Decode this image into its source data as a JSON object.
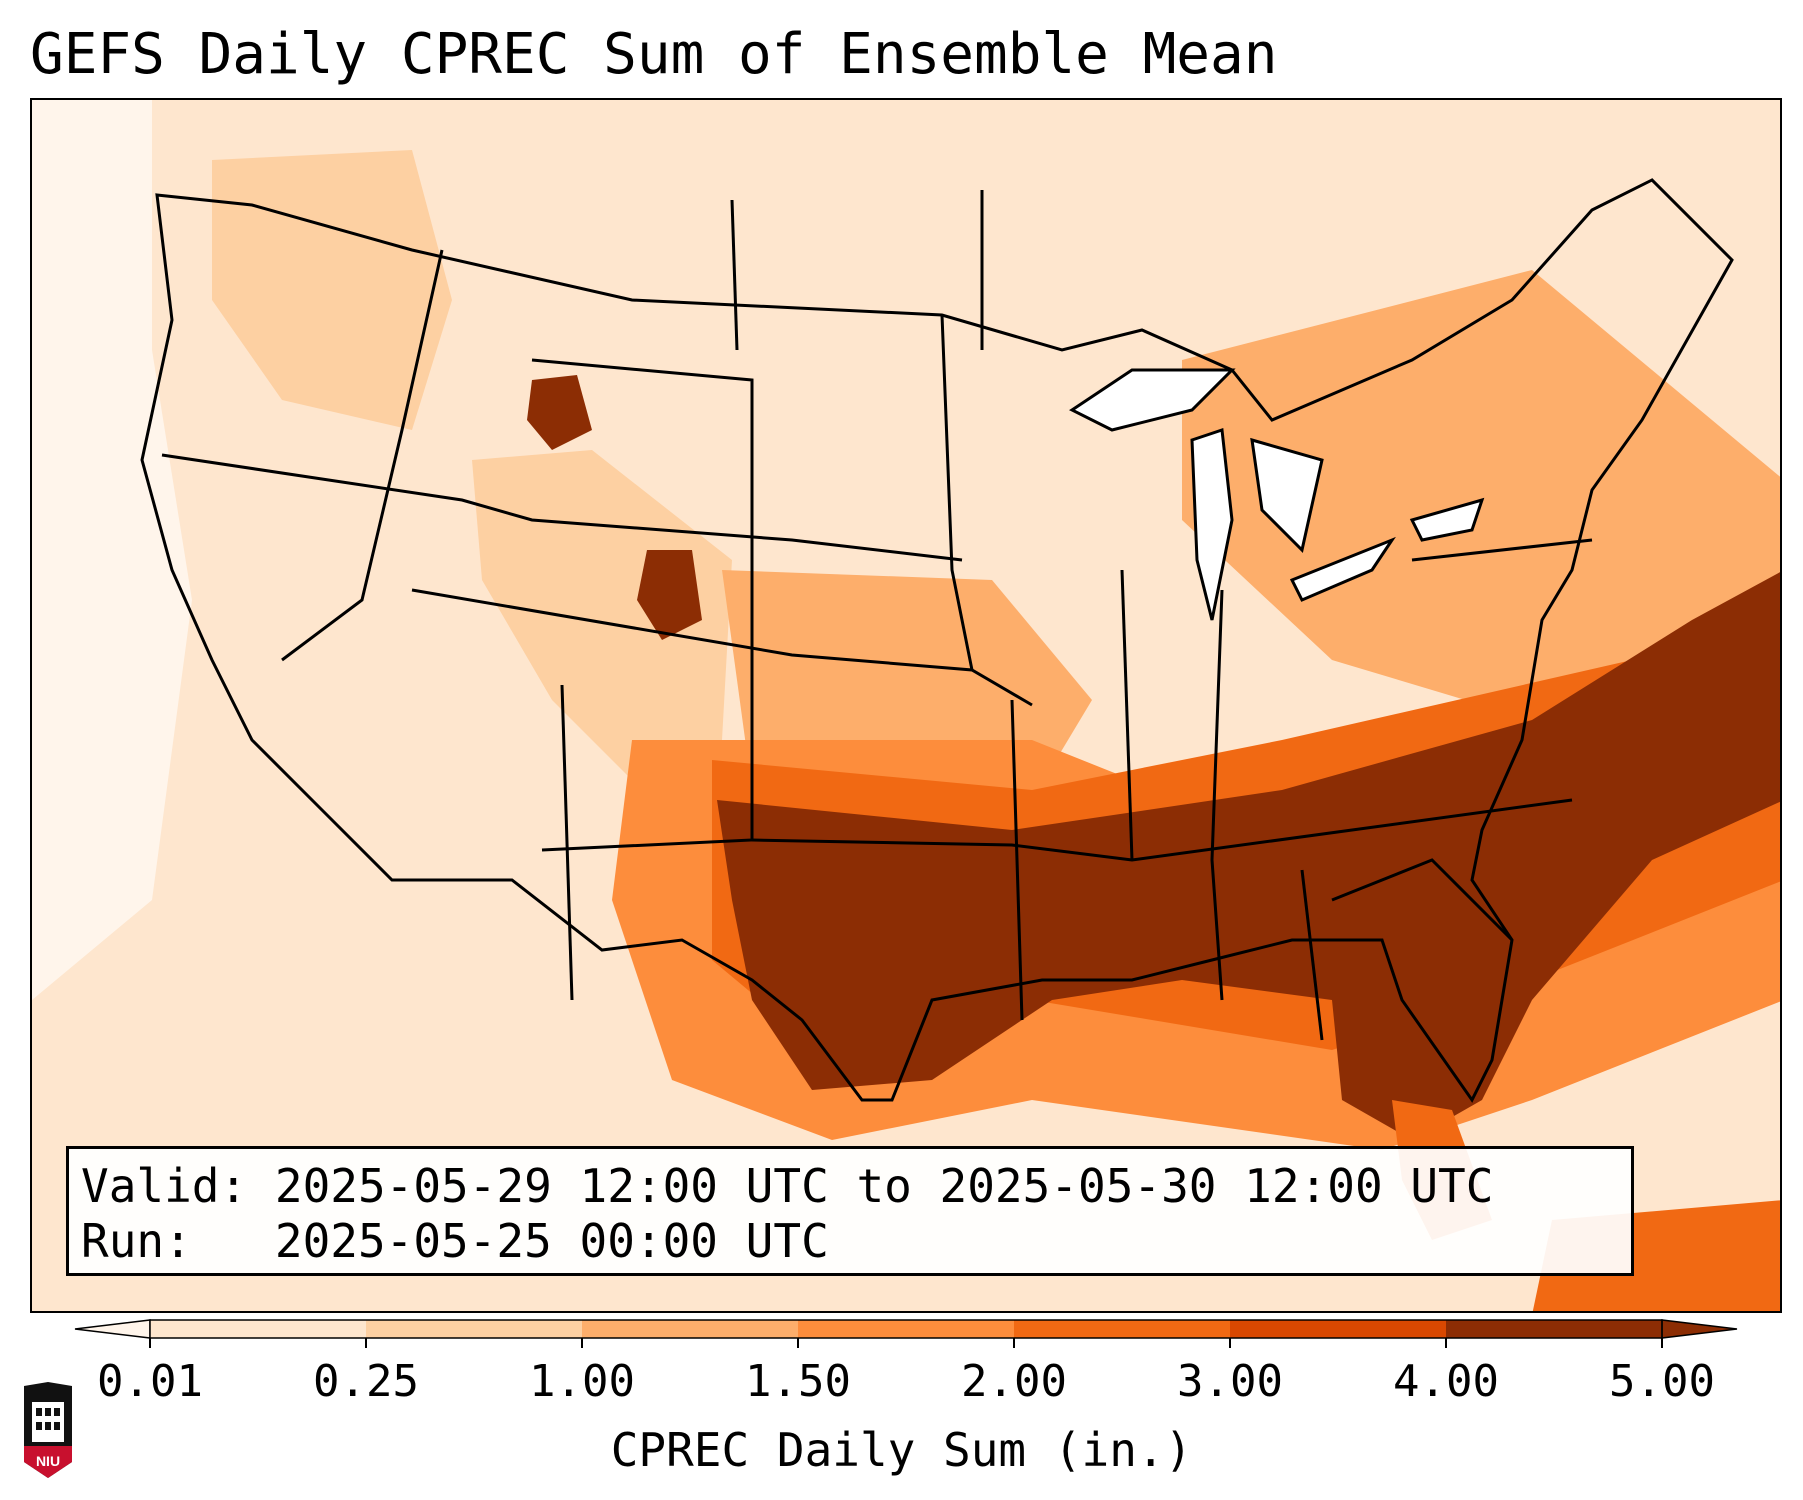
{
  "title": "GEFS Daily CPREC Sum of Ensemble Mean",
  "info": {
    "valid_label": "Valid:",
    "valid_value": "2025-05-29 12:00 UTC to 2025-05-30 12:00 UTC",
    "run_label": "Run:",
    "run_value": "2025-05-25 00:00 UTC"
  },
  "colorbar": {
    "title": "CPREC Daily Sum (in.)",
    "ticks": [
      "0.01",
      "0.25",
      "1.00",
      "1.50",
      "2.00",
      "3.00",
      "4.00",
      "5.00"
    ],
    "colors": [
      "#fff5eb",
      "#fee6ce",
      "#fdd0a2",
      "#fdae6b",
      "#fd8d3c",
      "#f16913",
      "#d94801",
      "#8c2d04"
    ],
    "extend": "both"
  },
  "logo": {
    "text": "NIU",
    "color": "#c8102e"
  },
  "map": {
    "projection": "Lambert conformal conic",
    "region": "Continental United States",
    "coastline_color": "#000000",
    "border_color": "#000000",
    "precip_regions": [
      {
        "id": "southeast-core",
        "level": 7,
        "color": "#8c2d04"
      },
      {
        "id": "tennessee-ohio-band",
        "level": 5,
        "color": "#f16913"
      },
      {
        "id": "southern-plains",
        "level": 4,
        "color": "#fd8d3c"
      },
      {
        "id": "central-plains",
        "level": 3,
        "color": "#fdae6b"
      },
      {
        "id": "northeast",
        "level": 3,
        "color": "#fdae6b"
      },
      {
        "id": "rockies",
        "level": 2,
        "color": "#fdd0a2"
      },
      {
        "id": "northwest",
        "level": 2,
        "color": "#fdd0a2"
      },
      {
        "id": "wyoming-colorado-max",
        "level": 7,
        "color": "#8c2d04"
      },
      {
        "id": "light-background",
        "level": 1,
        "color": "#fee6ce"
      }
    ]
  }
}
